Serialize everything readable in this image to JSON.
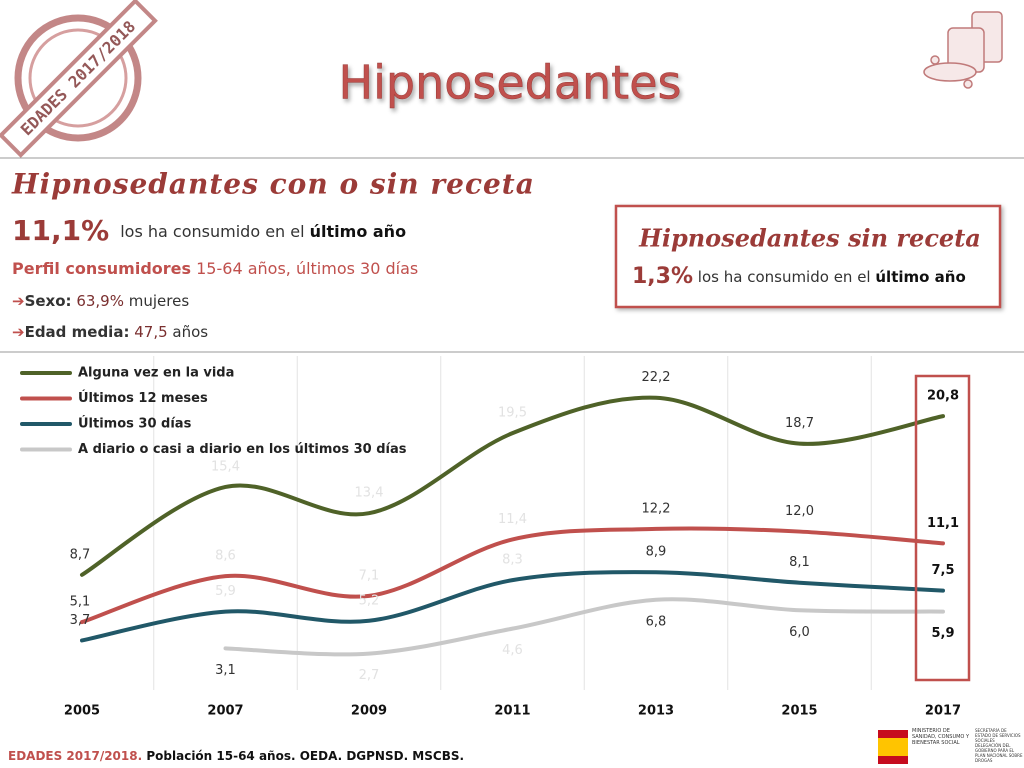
{
  "header": {
    "title": "Hipnosedantes",
    "stamp": "EDADES 2017/2018"
  },
  "summary": {
    "heading": "Hipnosedantes con o sin receta",
    "pct": "11,1%",
    "pct_text": "los ha consumido en el",
    "pct_period": "último año",
    "profile_label": "Perfil consumidores",
    "profile_text": "15-64 años, últimos 30 días",
    "sex_label": "Sexo:",
    "sex_value": "63,9%",
    "sex_text": "mujeres",
    "age_label": "Edad media:",
    "age_value": "47,5",
    "age_text": "años"
  },
  "box": {
    "heading": "Hipnosedantes sin receta",
    "pct": "1,3%",
    "pct_text": "los ha consumido en el",
    "pct_period": "último año"
  },
  "footer": {
    "source_a": "EDADES 2017/2018.",
    "source_b": "Población 15-64 años. OEDA. DGPNSD. MSCBS.",
    "logo_a": "MINISTERIO DE SANIDAD, CONSUMO Y BIENESTAR SOCIAL",
    "logo_b": "SECRETARÍA DE ESTADO DE SERVICIOS SOCIALES",
    "logo_c": "DELEGACIÓN DEL GOBIERNO PARA EL PLAN NACIONAL SOBRE DROGAS"
  },
  "chart_data": {
    "type": "line",
    "categories": [
      "2005",
      "2007",
      "2009",
      "2011",
      "2013",
      "2015",
      "2017"
    ],
    "ylim": [
      0,
      25
    ],
    "series": [
      {
        "name": "Alguna vez en la vida",
        "color": "#4f6228",
        "values": [
          8.7,
          15.4,
          13.4,
          19.5,
          22.2,
          18.7,
          20.8
        ],
        "value_labels": [
          "8,7",
          "15,4",
          "13,4",
          "19,5",
          "22,2",
          "18,7",
          "20,8"
        ]
      },
      {
        "name": "Últimos 12 meses",
        "color": "#c0504d",
        "values": [
          5.1,
          8.6,
          7.1,
          11.4,
          12.2,
          12.0,
          11.1
        ],
        "value_labels": [
          "5,1",
          "8,6",
          "7,1",
          "11,4",
          "12,2",
          "12,0",
          "11,1"
        ]
      },
      {
        "name": "Últimos 30 días",
        "color": "#215868",
        "values": [
          3.7,
          5.9,
          5.2,
          8.3,
          8.9,
          8.1,
          7.5
        ],
        "value_labels": [
          "3,7",
          "5,9",
          "5,2",
          "8,3",
          "8,9",
          "8,1",
          "7,5"
        ]
      },
      {
        "name": "A diario o casi a diario en los últimos 30 días",
        "color": "#c8c8c8",
        "values": [
          null,
          3.1,
          2.7,
          4.6,
          6.8,
          6.0,
          5.9
        ],
        "value_labels": [
          null,
          "3,1",
          "2,7",
          "4,6",
          "6,8",
          "6,0",
          "5,9"
        ]
      }
    ]
  }
}
